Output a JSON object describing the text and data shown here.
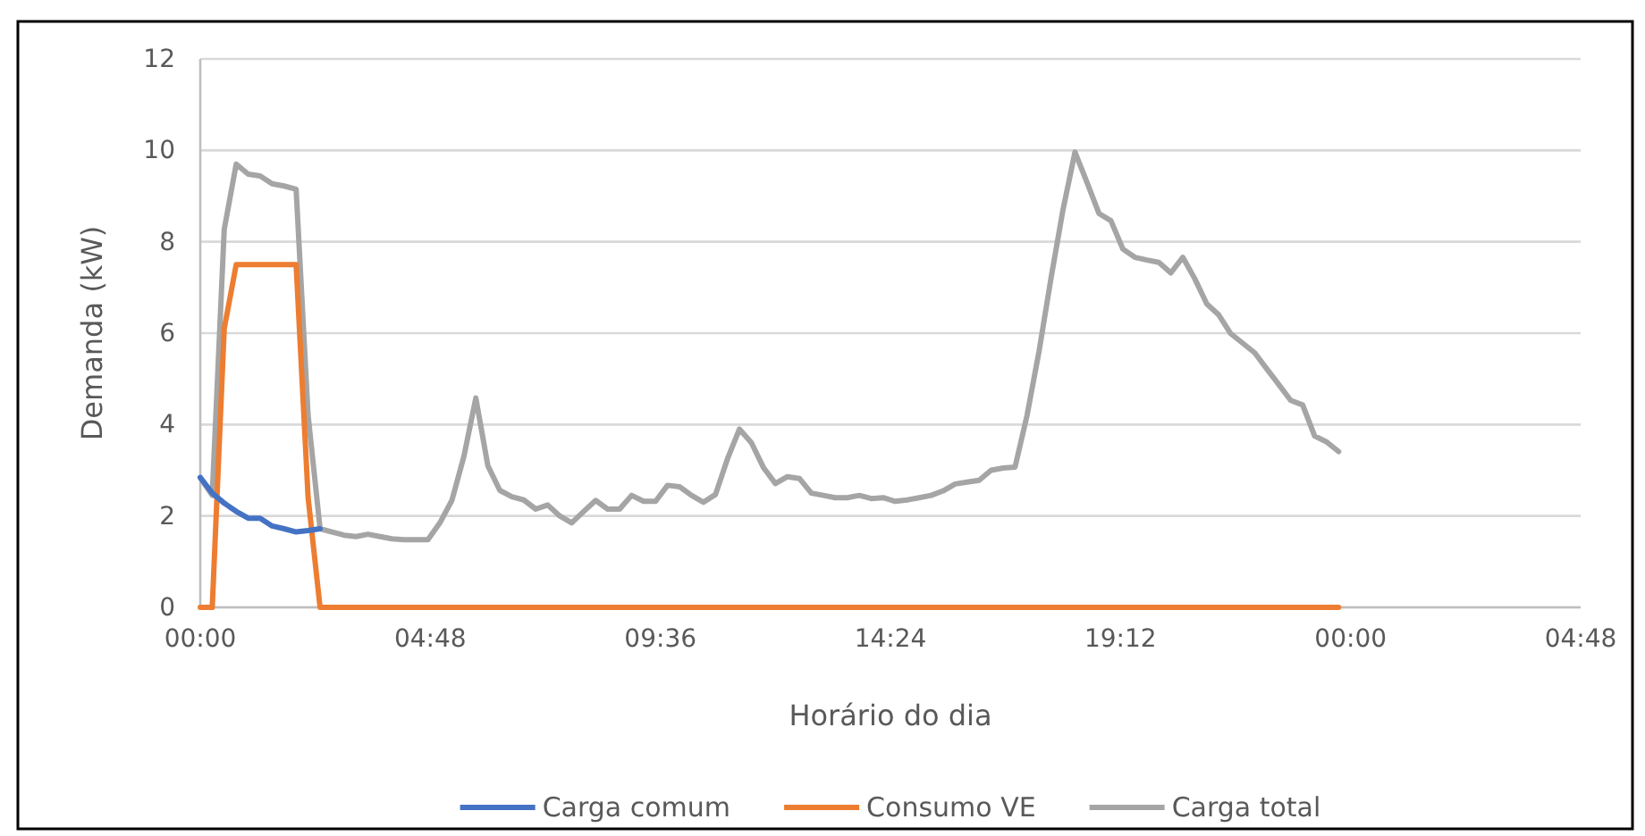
{
  "chart_data": {
    "type": "line",
    "xlabel": "Horário do dia",
    "ylabel": "Demanda (kW)",
    "xlim": [
      "2000-01-01T00:00",
      "2000-01-02T04:48"
    ],
    "xticks": [
      {
        "value": "2000-01-01T00:00",
        "label": "00:00"
      },
      {
        "value": "2000-01-01T04:48",
        "label": "04:48"
      },
      {
        "value": "2000-01-01T09:36",
        "label": "09:36"
      },
      {
        "value": "2000-01-01T14:24",
        "label": "14:24"
      },
      {
        "value": "2000-01-01T19:12",
        "label": "19:12"
      },
      {
        "value": "2000-01-02T00:00",
        "label": "00:00"
      },
      {
        "value": "2000-01-02T04:48",
        "label": "04:48"
      }
    ],
    "ylim": [
      0,
      12
    ],
    "yticks": [
      0,
      2,
      4,
      6,
      8,
      10,
      12
    ],
    "grid": "y",
    "legend": "bottom",
    "marker": "none",
    "line_style": "solid",
    "series": [
      {
        "name": "Carga comum",
        "color": "#4472c4",
        "x": [
          "2000-01-01T00:00",
          "2000-01-01T00:15",
          "2000-01-01T00:30",
          "2000-01-01T00:45",
          "2000-01-01T01:00",
          "2000-01-01T01:15",
          "2000-01-01T01:30",
          "2000-01-01T01:45",
          "2000-01-01T02:00",
          "2000-01-01T02:15",
          "2000-01-01T02:30"
        ],
        "values": [
          2.84,
          2.5,
          2.28,
          2.1,
          1.95,
          1.95,
          1.78,
          1.72,
          1.65,
          1.68,
          1.72
        ]
      },
      {
        "name": "Consumo VE",
        "color": "#ed7d31",
        "x": [
          "2000-01-01T00:00",
          "2000-01-01T00:15",
          "2000-01-01T00:30",
          "2000-01-01T00:45",
          "2000-01-01T01:00",
          "2000-01-01T01:15",
          "2000-01-01T01:30",
          "2000-01-01T01:45",
          "2000-01-01T02:00",
          "2000-01-01T02:15",
          "2000-01-01T02:30",
          "2000-01-01T23:45"
        ],
        "values": [
          0,
          0,
          6.1,
          7.5,
          7.5,
          7.5,
          7.5,
          7.5,
          7.5,
          2.4,
          0,
          0
        ]
      },
      {
        "name": "Carga total",
        "color": "#a5a5a5",
        "x": [
          "2000-01-01T00:00",
          "2000-01-01T00:15",
          "2000-01-01T00:30",
          "2000-01-01T00:45",
          "2000-01-01T01:00",
          "2000-01-01T01:15",
          "2000-01-01T01:30",
          "2000-01-01T01:45",
          "2000-01-01T02:00",
          "2000-01-01T02:15",
          "2000-01-01T02:30",
          "2000-01-01T02:45",
          "2000-01-01T03:00",
          "2000-01-01T03:15",
          "2000-01-01T03:30",
          "2000-01-01T03:45",
          "2000-01-01T04:00",
          "2000-01-01T04:15",
          "2000-01-01T04:30",
          "2000-01-01T04:45",
          "2000-01-01T05:00",
          "2000-01-01T05:15",
          "2000-01-01T05:30",
          "2000-01-01T05:45",
          "2000-01-01T06:00",
          "2000-01-01T06:15",
          "2000-01-01T06:30",
          "2000-01-01T06:45",
          "2000-01-01T07:00",
          "2000-01-01T07:15",
          "2000-01-01T07:30",
          "2000-01-01T07:45",
          "2000-01-01T08:00",
          "2000-01-01T08:15",
          "2000-01-01T08:30",
          "2000-01-01T08:45",
          "2000-01-01T09:00",
          "2000-01-01T09:15",
          "2000-01-01T09:30",
          "2000-01-01T09:45",
          "2000-01-01T10:00",
          "2000-01-01T10:15",
          "2000-01-01T10:30",
          "2000-01-01T10:45",
          "2000-01-01T11:00",
          "2000-01-01T11:15",
          "2000-01-01T11:30",
          "2000-01-01T11:45",
          "2000-01-01T12:00",
          "2000-01-01T12:15",
          "2000-01-01T12:30",
          "2000-01-01T12:45",
          "2000-01-01T13:00",
          "2000-01-01T13:15",
          "2000-01-01T13:30",
          "2000-01-01T13:45",
          "2000-01-01T14:00",
          "2000-01-01T14:15",
          "2000-01-01T14:30",
          "2000-01-01T14:45",
          "2000-01-01T15:00",
          "2000-01-01T15:15",
          "2000-01-01T15:30",
          "2000-01-01T15:45",
          "2000-01-01T16:00",
          "2000-01-01T16:15",
          "2000-01-01T16:30",
          "2000-01-01T16:45",
          "2000-01-01T17:00",
          "2000-01-01T17:15",
          "2000-01-01T17:30",
          "2000-01-01T17:45",
          "2000-01-01T18:00",
          "2000-01-01T18:15",
          "2000-01-01T18:30",
          "2000-01-01T18:45",
          "2000-01-01T19:00",
          "2000-01-01T19:15",
          "2000-01-01T19:30",
          "2000-01-01T19:45",
          "2000-01-01T20:00",
          "2000-01-01T20:15",
          "2000-01-01T20:30",
          "2000-01-01T20:45",
          "2000-01-01T21:00",
          "2000-01-01T21:15",
          "2000-01-01T21:30",
          "2000-01-01T21:45",
          "2000-01-01T22:00",
          "2000-01-01T22:15",
          "2000-01-01T22:30",
          "2000-01-01T22:45",
          "2000-01-01T23:00",
          "2000-01-01T23:15",
          "2000-01-01T23:30",
          "2000-01-01T23:45"
        ],
        "values": [
          2.84,
          2.45,
          8.27,
          9.7,
          9.48,
          9.44,
          9.27,
          9.22,
          9.15,
          4.2,
          1.72,
          1.65,
          1.58,
          1.55,
          1.6,
          1.55,
          1.5,
          1.48,
          1.48,
          1.48,
          1.85,
          2.34,
          3.3,
          4.58,
          3.1,
          2.56,
          2.42,
          2.35,
          2.15,
          2.24,
          2.0,
          1.85,
          2.1,
          2.34,
          2.15,
          2.15,
          2.45,
          2.32,
          2.32,
          2.67,
          2.64,
          2.45,
          2.3,
          2.47,
          3.25,
          3.9,
          3.6,
          3.06,
          2.71,
          2.86,
          2.82,
          2.5,
          2.45,
          2.4,
          2.4,
          2.45,
          2.38,
          2.4,
          2.32,
          2.35,
          2.4,
          2.45,
          2.55,
          2.7,
          2.74,
          2.78,
          3.0,
          3.05,
          3.07,
          4.2,
          5.6,
          7.2,
          8.7,
          9.96,
          9.3,
          8.62,
          8.46,
          7.84,
          7.66,
          7.6,
          7.55,
          7.32,
          7.66,
          7.19,
          6.64,
          6.4,
          5.99,
          5.78,
          5.57,
          5.22,
          4.88,
          4.53,
          4.43,
          3.75,
          3.62,
          3.41
        ]
      }
    ]
  }
}
